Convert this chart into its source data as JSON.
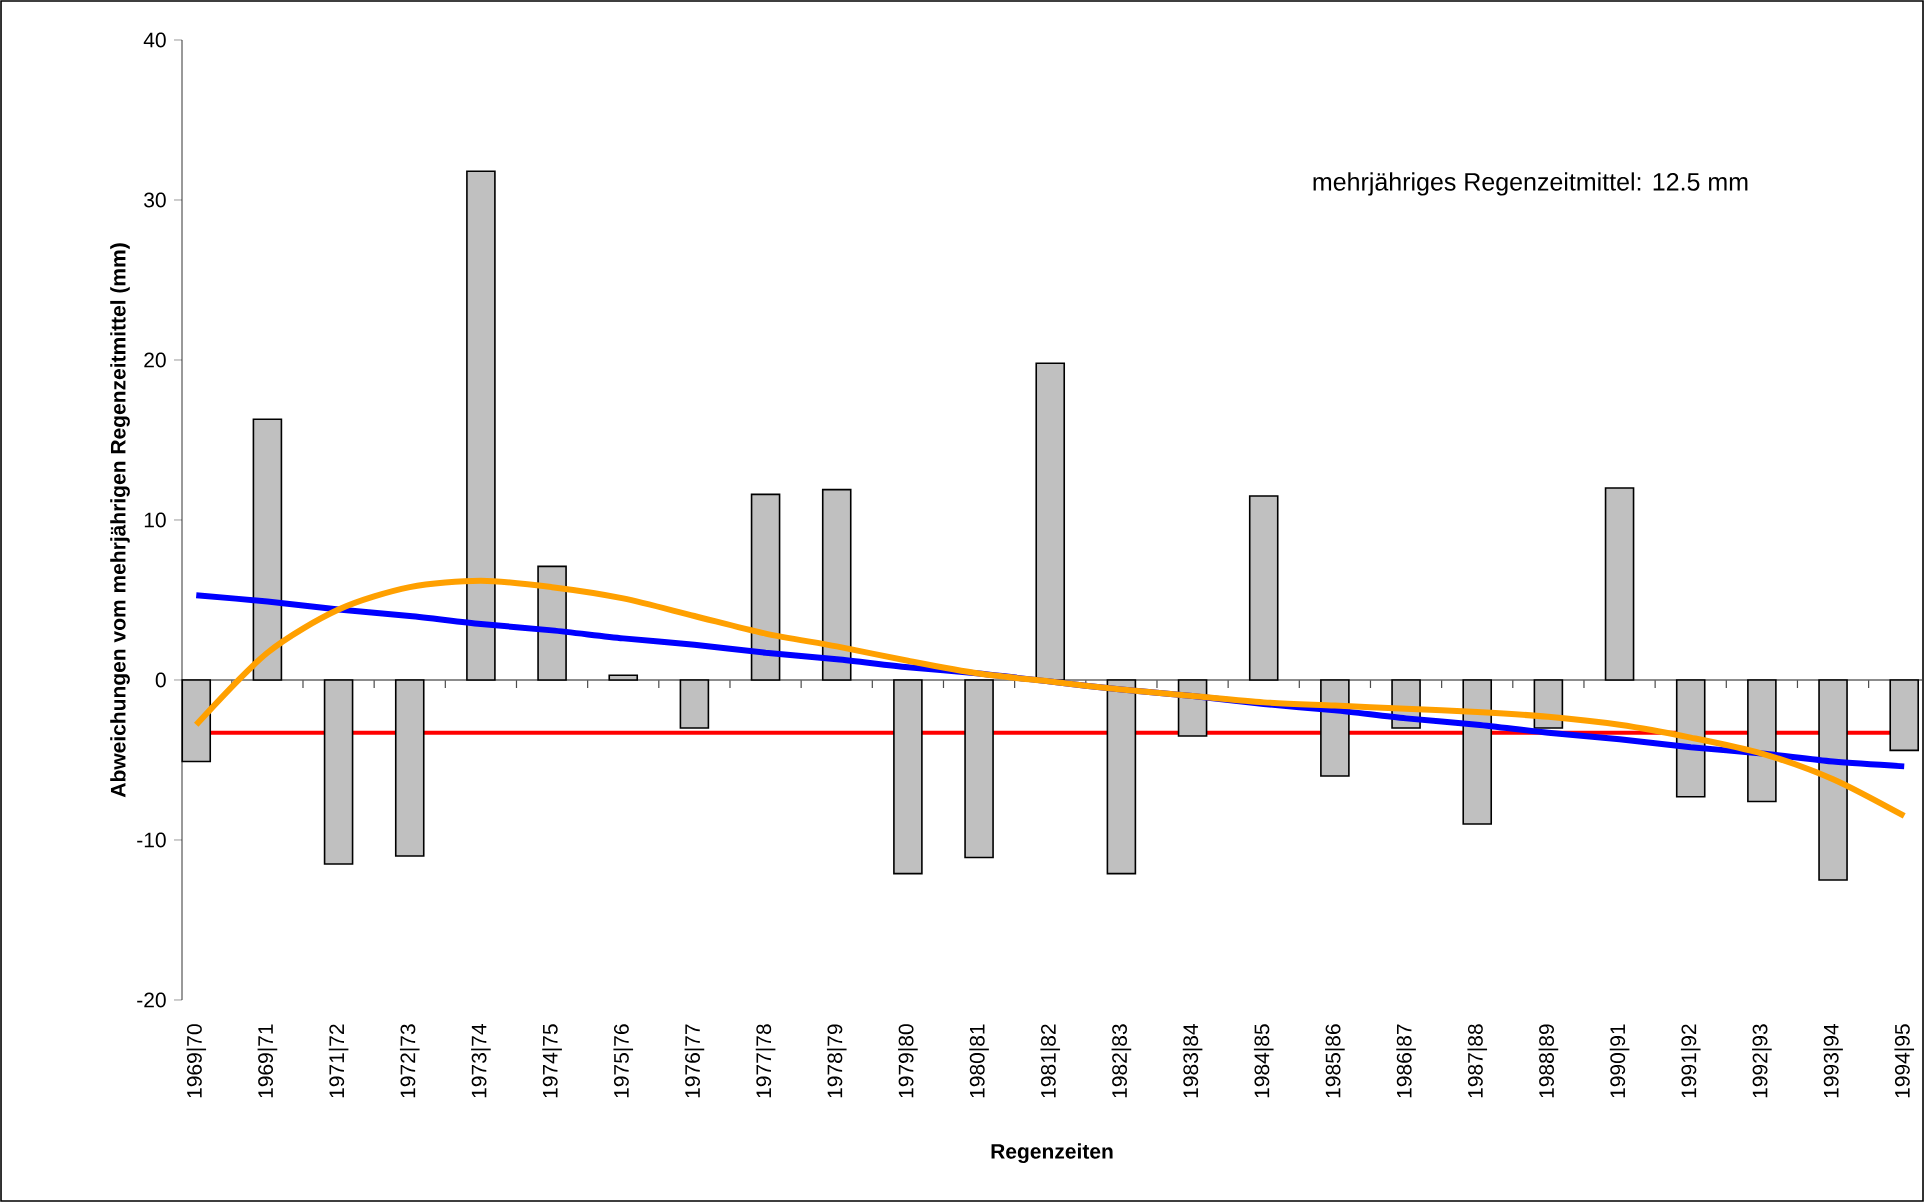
{
  "chart_data": {
    "type": "bar",
    "xlabel": "Regenzeiten",
    "ylabel": "Abweichungen vom mehrjährigen Regenzeitmittel (mm)",
    "categories": [
      "1969|70",
      "1969|71",
      "1971|72",
      "1972|73",
      "1973|74",
      "1974|75",
      "1975|76",
      "1976|77",
      "1977|78",
      "1978|79",
      "1979|80",
      "1980|81",
      "1981|82",
      "1982|83",
      "1983|84",
      "1984|85",
      "1985|86",
      "1986|87",
      "1987|88",
      "1988|89",
      "1990|91",
      "1991|92",
      "1992|93",
      "1993|94",
      "1994|95"
    ],
    "series": [
      {
        "color": "#c0c0c0",
        "values": [
          -5.1,
          16.3,
          -11.5,
          -11.0,
          31.8,
          7.1,
          0.3,
          -3.0,
          11.6,
          11.9,
          -12.1,
          -11.1,
          19.8,
          -12.1,
          -3.5,
          11.5,
          -6.0,
          -3.0,
          -9.0,
          -3.0,
          12.0,
          -7.3,
          -7.6,
          -12.5,
          -4.4
        ]
      },
      {
        "type": "line",
        "color": "#0000ff",
        "values": [
          5.3,
          4.9,
          4.4,
          4.0,
          3.5,
          3.1,
          2.6,
          2.2,
          1.7,
          1.3,
          0.8,
          0.4,
          -0.1,
          -0.6,
          -1.0,
          -1.5,
          -1.9,
          -2.4,
          -2.8,
          -3.3,
          -3.7,
          -4.2,
          -4.6,
          -5.1,
          -5.4
        ]
      },
      {
        "type": "line",
        "color": "#ffa000",
        "values": [
          -2.8,
          1.7,
          4.4,
          5.8,
          6.2,
          5.8,
          5.1,
          4.0,
          2.9,
          2.1,
          1.2,
          0.4,
          -0.1,
          -0.6,
          -1.0,
          -1.4,
          -1.6,
          -1.8,
          -2.0,
          -2.3,
          -2.8,
          -3.6,
          -4.6,
          -6.2,
          -8.5
        ]
      }
    ],
    "ylim": [
      -20,
      40
    ],
    "yticks": [
      -20,
      -10,
      0,
      10,
      20,
      30,
      40
    ],
    "marker": "none",
    "line_style": "solid",
    "ref_lines": [
      {
        "axis": "y",
        "value": -3.3,
        "color": "#ff0000"
      }
    ],
    "annotations": [
      "mehrjähriges Regenzeitmittel: 12.5 mm"
    ]
  }
}
